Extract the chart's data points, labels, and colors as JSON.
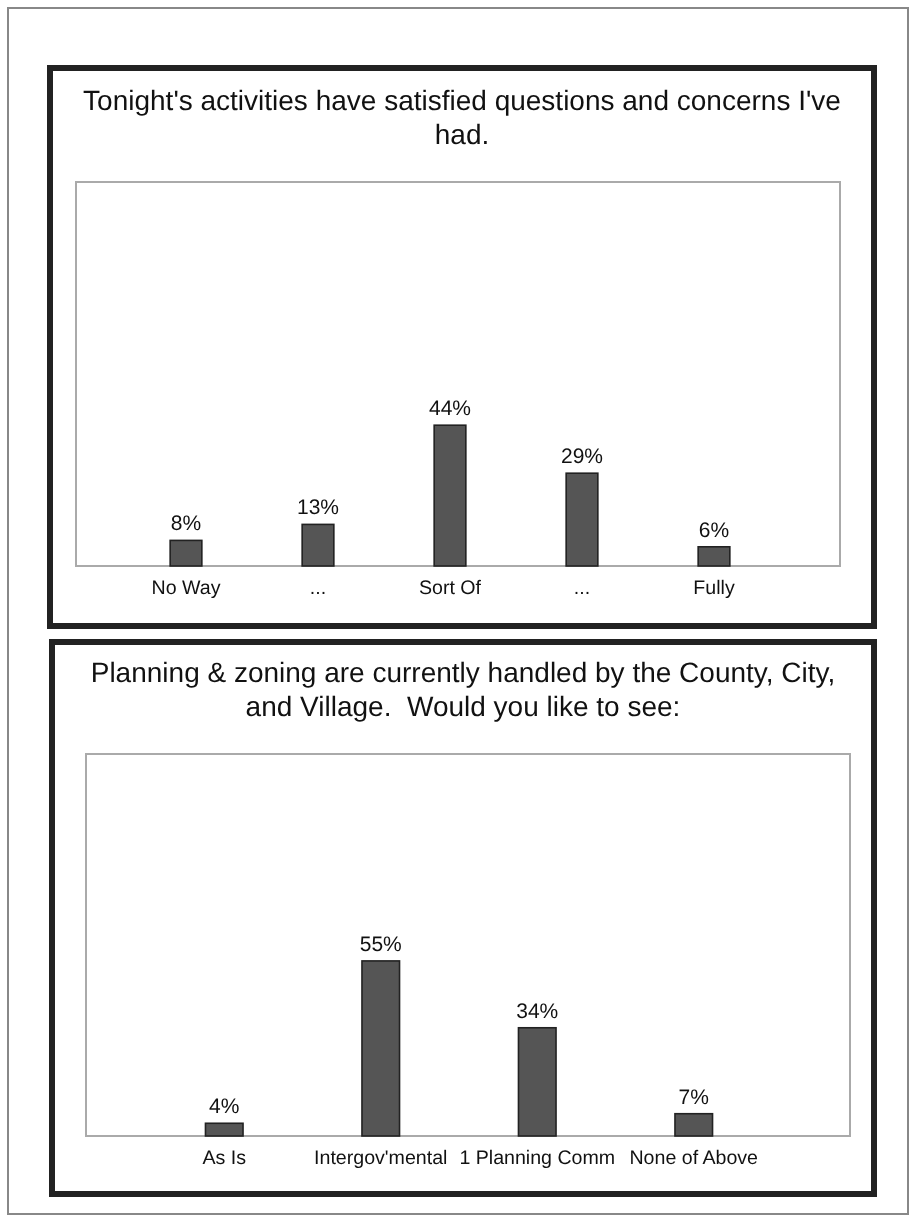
{
  "chart_data": [
    {
      "type": "bar",
      "title": "Tonight's activities have satisfied questions and concerns I've had.",
      "categories": [
        "No Way",
        "...",
        "Sort Of",
        "...",
        "Fully"
      ],
      "values": [
        8,
        13,
        44,
        29,
        6
      ],
      "value_labels": [
        "8%",
        "13%",
        "44%",
        "29%",
        "6%"
      ],
      "color": "#555555"
    },
    {
      "type": "bar",
      "title": "Planning & zoning are currently handled by the County, City, and Village.  Would you like to see:",
      "categories": [
        "As Is",
        "Intergov'mental",
        "1 Planning Comm",
        "None of Above"
      ],
      "values": [
        4,
        55,
        34,
        7
      ],
      "value_labels": [
        "4%",
        "55%",
        "34%",
        "7%"
      ],
      "color": "#555555"
    }
  ]
}
